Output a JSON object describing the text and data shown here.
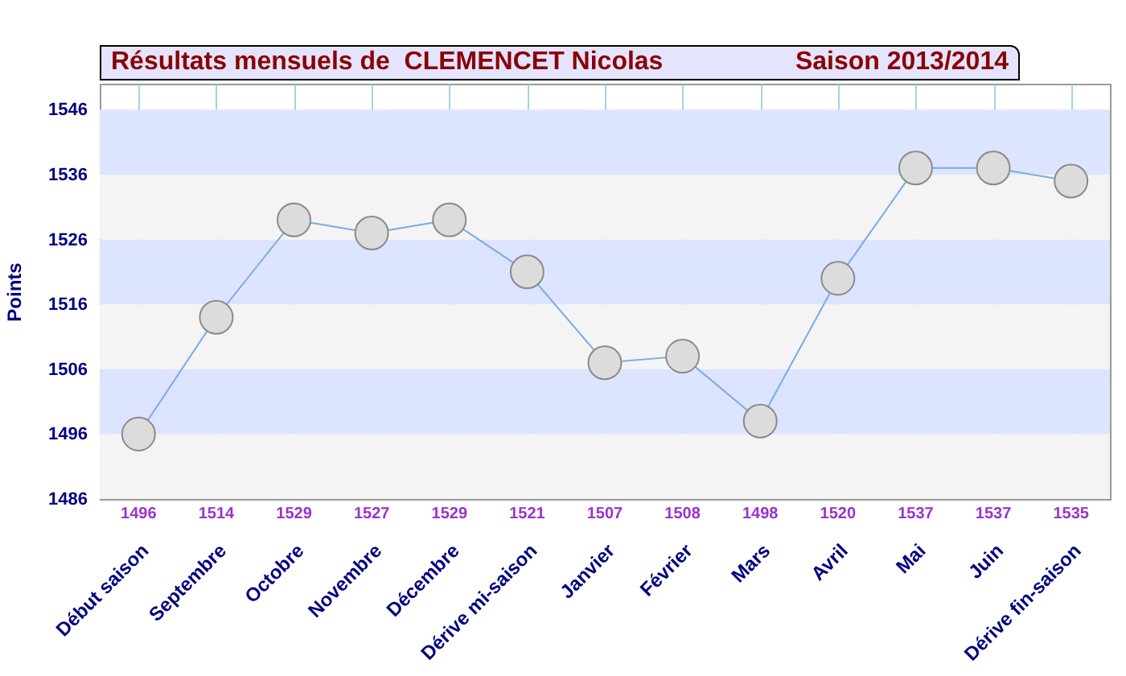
{
  "chart_data": {
    "type": "line",
    "title": "Résultats mensuels de  CLEMENCET Nicolas",
    "subtitle": "Saison 2013/2014",
    "ylabel": "Points",
    "categories": [
      "Début saison",
      "Septembre",
      "Octobre",
      "Novembre",
      "Décembre",
      "Dérive mi-saison",
      "Janvier",
      "Février",
      "Mars",
      "Avril",
      "Mai",
      "Juin",
      "Dérive fin-saison"
    ],
    "series": [
      {
        "color": "#7aaae8",
        "values": [
          1496,
          1514,
          1529,
          1527,
          1529,
          1521,
          1507,
          1508,
          1498,
          1520,
          1537,
          1537,
          1535
        ]
      }
    ],
    "ylim": [
      1486,
      1550
    ],
    "yticks": [
      1486,
      1496,
      1506,
      1516,
      1526,
      1536,
      1546
    ],
    "bands": [
      {
        "axis": "y",
        "from": 1486,
        "to": 1496,
        "color": "#f4f4f4"
      },
      {
        "axis": "y",
        "from": 1496,
        "to": 1506,
        "color": "#dde4ff"
      },
      {
        "axis": "y",
        "from": 1506,
        "to": 1516,
        "color": "#f4f4f4"
      },
      {
        "axis": "y",
        "from": 1516,
        "to": 1526,
        "color": "#dde4ff"
      },
      {
        "axis": "y",
        "from": 1526,
        "to": 1536,
        "color": "#f4f4f4"
      },
      {
        "axis": "y",
        "from": 1536,
        "to": 1546,
        "color": "#dde4ff"
      }
    ],
    "grid": "x",
    "marker": "circle",
    "data_labels": true
  }
}
